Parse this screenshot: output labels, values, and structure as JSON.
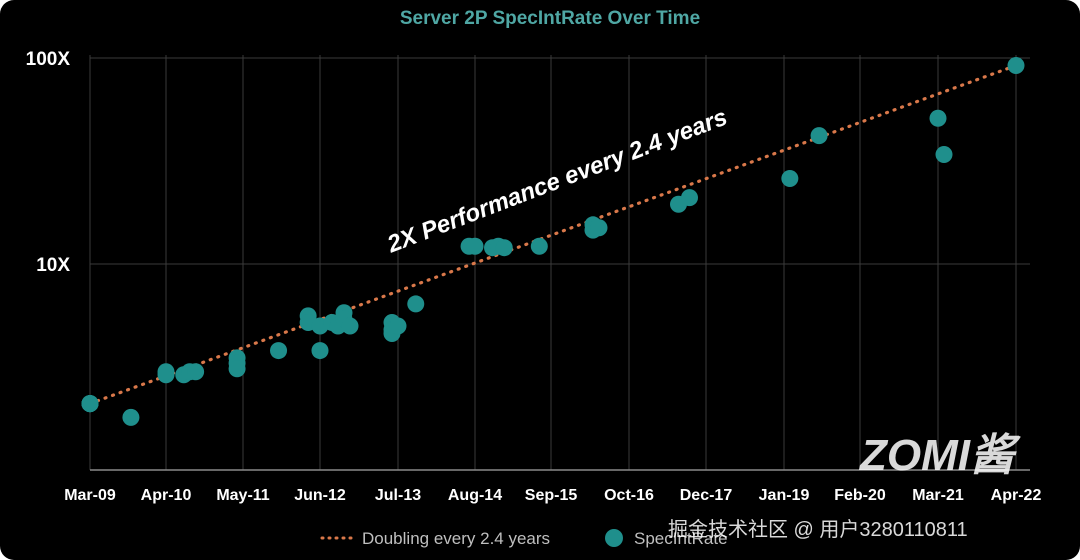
{
  "chart_data": {
    "type": "scatter",
    "title": "Server 2P SpecIntRate Over Time",
    "xlabel": "",
    "ylabel": "",
    "y_scale": "log",
    "ylim": [
      1,
      100
    ],
    "y_ticks": [
      "100X",
      "10X"
    ],
    "y_tick_values": [
      100,
      10
    ],
    "x_ticks": [
      "Mar-09",
      "Apr-10",
      "May-11",
      "Jun-12",
      "Jul-13",
      "Aug-14",
      "Sep-15",
      "Oct-16",
      "Dec-17",
      "Jan-19",
      "Feb-20",
      "Mar-21",
      "Apr-22"
    ],
    "grid": true,
    "legend": "bottom",
    "annotation": "2X Performance every 2.4 years",
    "series": [
      {
        "name": "Doubling every 2.4 years",
        "kind": "trend-dotted",
        "color": "#d9784a",
        "x": [
          "Mar-09",
          "Apr-22"
        ],
        "y": [
          2.1,
          92
        ]
      },
      {
        "name": "SpecIntRate",
        "kind": "scatter",
        "color": "#1f8f8c",
        "points": [
          {
            "x": "Mar-09",
            "y": 2.1
          },
          {
            "x": "Mar-09",
            "y": 2.1
          },
          {
            "x": "Mar-09",
            "y": 2.1
          },
          {
            "x": "Mar-09",
            "y": 2.1
          },
          {
            "x": "Mar-09",
            "y": 2.1
          },
          {
            "x": "Mar-09",
            "y": 2.1
          },
          {
            "x": "Oct-09",
            "y": 1.8
          },
          {
            "x": "Apr-10",
            "y": 2.9
          },
          {
            "x": "Apr-10",
            "y": 3.0
          },
          {
            "x": "Jul-10",
            "y": 2.9
          },
          {
            "x": "Aug-10",
            "y": 3.0
          },
          {
            "x": "Sep-10",
            "y": 3.0
          },
          {
            "x": "Apr-11",
            "y": 3.5
          },
          {
            "x": "Apr-11",
            "y": 3.3
          },
          {
            "x": "Apr-11",
            "y": 3.1
          },
          {
            "x": "Nov-11",
            "y": 3.8
          },
          {
            "x": "Apr-12",
            "y": 5.6
          },
          {
            "x": "Apr-12",
            "y": 5.2
          },
          {
            "x": "Jun-12",
            "y": 5.0
          },
          {
            "x": "Jun-12",
            "y": 3.8
          },
          {
            "x": "Aug-12",
            "y": 5.2
          },
          {
            "x": "Sep-12",
            "y": 5.0
          },
          {
            "x": "Oct-12",
            "y": 5.8
          },
          {
            "x": "Oct-12",
            "y": 5.4
          },
          {
            "x": "Nov-12",
            "y": 5.0
          },
          {
            "x": "Jun-13",
            "y": 5.2
          },
          {
            "x": "Jun-13",
            "y": 4.8
          },
          {
            "x": "Jun-13",
            "y": 4.6
          },
          {
            "x": "Jul-13",
            "y": 5.0
          },
          {
            "x": "Oct-13",
            "y": 6.4
          },
          {
            "x": "Jul-14",
            "y": 12.2
          },
          {
            "x": "Aug-14",
            "y": 12.2
          },
          {
            "x": "Nov-14",
            "y": 12.0
          },
          {
            "x": "Dec-14",
            "y": 12.2
          },
          {
            "x": "Jan-15",
            "y": 12.0
          },
          {
            "x": "Jul-15",
            "y": 12.2
          },
          {
            "x": "Apr-16",
            "y": 15.5
          },
          {
            "x": "Apr-16",
            "y": 14.6
          },
          {
            "x": "May-16",
            "y": 15.0
          },
          {
            "x": "Jul-17",
            "y": 19.5
          },
          {
            "x": "Sep-17",
            "y": 21.0
          },
          {
            "x": "Feb-19",
            "y": 26.0
          },
          {
            "x": "Jul-19",
            "y": 42.0
          },
          {
            "x": "Mar-21",
            "y": 51.0
          },
          {
            "x": "Apr-21",
            "y": 34.0
          },
          {
            "x": "Apr-22",
            "y": 92.0
          }
        ]
      }
    ]
  },
  "watermark": {
    "text": "掘金技术社区 @ 用户3280110811",
    "logo": "ZOMI酱"
  }
}
